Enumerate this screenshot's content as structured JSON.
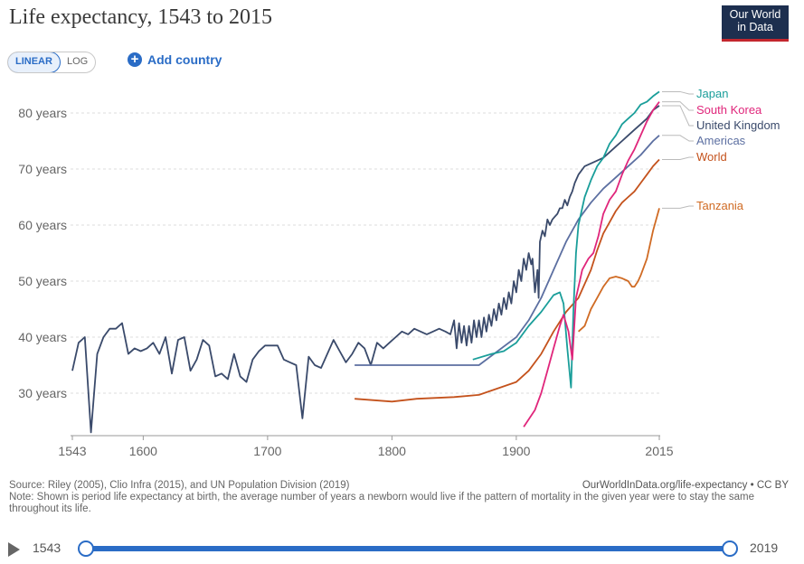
{
  "header": {
    "title": "Life expectancy, 1543 to 2015",
    "logo_line1": "Our World",
    "logo_line2": "in Data"
  },
  "controls": {
    "linear_label": "LINEAR",
    "log_label": "LOG",
    "add_country_label": "Add country"
  },
  "footer": {
    "source": "Source: Riley (2005), Clio Infra (2015), and UN Population Division (2019)",
    "note": "Note: Shown is period life expectancy at birth, the average number of years a newborn would live if the pattern of mortality in the given year were to stay the same throughout its life.",
    "url": "OurWorldInData.org/life-expectancy • CC BY"
  },
  "timeline": {
    "start_label": "1543",
    "end_label": "2019"
  },
  "colors": {
    "Japan": "#1a9e9a",
    "South Korea": "#e0267b",
    "United Kingdom": "#3a4a6b",
    "Americas": "#5c6fa1",
    "World": "#c4521c",
    "Tanzania": "#d06b24"
  },
  "chart_data": {
    "type": "line",
    "title": "Life expectancy, 1543 to 2015",
    "xlim": [
      1543,
      2015
    ],
    "ylim": [
      22,
      85
    ],
    "x_ticks": [
      1543,
      1600,
      1700,
      1800,
      1900,
      2015
    ],
    "y_ticks": [
      30,
      40,
      50,
      60,
      70,
      80
    ],
    "y_tick_labels": [
      "30 years",
      "40 years",
      "50 years",
      "60 years",
      "70 years",
      "80 years"
    ],
    "grid": "horizontal dashed",
    "legend": "right end labels",
    "series": [
      {
        "name": "United Kingdom",
        "points": [
          [
            1543,
            34
          ],
          [
            1548,
            39
          ],
          [
            1553,
            40
          ],
          [
            1558,
            23
          ],
          [
            1563,
            37
          ],
          [
            1568,
            40
          ],
          [
            1573,
            41.5
          ],
          [
            1578,
            41.5
          ],
          [
            1583,
            42.5
          ],
          [
            1588,
            37
          ],
          [
            1593,
            38
          ],
          [
            1598,
            37.5
          ],
          [
            1603,
            38
          ],
          [
            1608,
            39
          ],
          [
            1613,
            37
          ],
          [
            1618,
            40
          ],
          [
            1623,
            33.5
          ],
          [
            1628,
            39.5
          ],
          [
            1633,
            40
          ],
          [
            1638,
            34
          ],
          [
            1643,
            36
          ],
          [
            1648,
            39.5
          ],
          [
            1653,
            38.5
          ],
          [
            1658,
            33
          ],
          [
            1663,
            33.5
          ],
          [
            1668,
            32.5
          ],
          [
            1673,
            37
          ],
          [
            1678,
            33
          ],
          [
            1683,
            32
          ],
          [
            1688,
            36
          ],
          [
            1693,
            37.5
          ],
          [
            1698,
            38.5
          ],
          [
            1703,
            38.5
          ],
          [
            1708,
            38.5
          ],
          [
            1713,
            36
          ],
          [
            1718,
            35.5
          ],
          [
            1723,
            35
          ],
          [
            1728,
            25.5
          ],
          [
            1733,
            36.5
          ],
          [
            1738,
            35
          ],
          [
            1743,
            34.5
          ],
          [
            1748,
            37
          ],
          [
            1753,
            39.5
          ],
          [
            1758,
            37.5
          ],
          [
            1763,
            35.5
          ],
          [
            1768,
            37
          ],
          [
            1773,
            39
          ],
          [
            1778,
            38
          ],
          [
            1783,
            35
          ],
          [
            1788,
            39
          ],
          [
            1793,
            38
          ],
          [
            1798,
            39
          ],
          [
            1803,
            40
          ],
          [
            1808,
            41
          ],
          [
            1813,
            40.5
          ],
          [
            1818,
            41.5
          ],
          [
            1823,
            41
          ],
          [
            1828,
            40.5
          ],
          [
            1833,
            41
          ],
          [
            1838,
            41.5
          ],
          [
            1843,
            41
          ],
          [
            1847,
            40.5
          ],
          [
            1850,
            43
          ],
          [
            1852,
            38
          ],
          [
            1854,
            42.5
          ],
          [
            1856,
            39
          ],
          [
            1858,
            42
          ],
          [
            1860,
            38.5
          ],
          [
            1862,
            42
          ],
          [
            1864,
            39
          ],
          [
            1866,
            43
          ],
          [
            1868,
            40
          ],
          [
            1870,
            43
          ],
          [
            1872,
            40
          ],
          [
            1874,
            43.5
          ],
          [
            1876,
            41
          ],
          [
            1878,
            44
          ],
          [
            1880,
            42
          ],
          [
            1882,
            45
          ],
          [
            1884,
            43
          ],
          [
            1886,
            46
          ],
          [
            1888,
            44
          ],
          [
            1890,
            47
          ],
          [
            1892,
            45
          ],
          [
            1894,
            48
          ],
          [
            1896,
            46
          ],
          [
            1898,
            50
          ],
          [
            1900,
            48
          ],
          [
            1902,
            52
          ],
          [
            1904,
            50
          ],
          [
            1906,
            54
          ],
          [
            1908,
            52
          ],
          [
            1910,
            55
          ],
          [
            1912,
            53
          ],
          [
            1913,
            54
          ],
          [
            1915,
            48
          ],
          [
            1917,
            52
          ],
          [
            1918,
            47
          ],
          [
            1919,
            57
          ],
          [
            1921,
            59
          ],
          [
            1923,
            58
          ],
          [
            1925,
            61
          ],
          [
            1927,
            60
          ],
          [
            1929,
            61
          ],
          [
            1931,
            61.5
          ],
          [
            1933,
            62
          ],
          [
            1935,
            63
          ],
          [
            1937,
            63
          ],
          [
            1939,
            64.5
          ],
          [
            1941,
            63.5
          ],
          [
            1943,
            65
          ],
          [
            1945,
            66
          ],
          [
            1947,
            67.5
          ],
          [
            1950,
            69
          ],
          [
            1955,
            70.5
          ],
          [
            1960,
            71
          ],
          [
            1965,
            71.5
          ],
          [
            1970,
            72
          ],
          [
            1975,
            73
          ],
          [
            1980,
            74
          ],
          [
            1985,
            75
          ],
          [
            1990,
            76
          ],
          [
            1995,
            77
          ],
          [
            2000,
            78
          ],
          [
            2005,
            79
          ],
          [
            2010,
            80.5
          ],
          [
            2015,
            81.3
          ]
        ]
      },
      {
        "name": "Americas",
        "points": [
          [
            1770,
            35
          ],
          [
            1870,
            35
          ],
          [
            1900,
            40
          ],
          [
            1910,
            43
          ],
          [
            1920,
            47
          ],
          [
            1930,
            52
          ],
          [
            1940,
            57
          ],
          [
            1950,
            61
          ],
          [
            1960,
            64
          ],
          [
            1970,
            66.5
          ],
          [
            1980,
            68.5
          ],
          [
            1990,
            70.5
          ],
          [
            2000,
            72.5
          ],
          [
            2010,
            75
          ],
          [
            2015,
            76
          ]
        ]
      },
      {
        "name": "World",
        "points": [
          [
            1770,
            29
          ],
          [
            1800,
            28.5
          ],
          [
            1820,
            29
          ],
          [
            1850,
            29.3
          ],
          [
            1870,
            29.7
          ],
          [
            1900,
            32
          ],
          [
            1910,
            34
          ],
          [
            1920,
            37
          ],
          [
            1930,
            41
          ],
          [
            1940,
            44.5
          ],
          [
            1950,
            47
          ],
          [
            1955,
            49.5
          ],
          [
            1960,
            52
          ],
          [
            1965,
            55.5
          ],
          [
            1970,
            58.5
          ],
          [
            1975,
            60.5
          ],
          [
            1980,
            62.5
          ],
          [
            1985,
            64
          ],
          [
            1990,
            65
          ],
          [
            1995,
            66
          ],
          [
            2000,
            67.5
          ],
          [
            2005,
            69
          ],
          [
            2010,
            70.5
          ],
          [
            2015,
            71.7
          ]
        ]
      },
      {
        "name": "Japan",
        "points": [
          [
            1865,
            36
          ],
          [
            1880,
            37
          ],
          [
            1890,
            37.5
          ],
          [
            1900,
            39
          ],
          [
            1910,
            42
          ],
          [
            1920,
            44.5
          ],
          [
            1930,
            47.5
          ],
          [
            1935,
            48
          ],
          [
            1938,
            46
          ],
          [
            1941,
            38
          ],
          [
            1944,
            31
          ],
          [
            1946,
            45
          ],
          [
            1948,
            55
          ],
          [
            1950,
            60
          ],
          [
            1955,
            65
          ],
          [
            1960,
            68
          ],
          [
            1965,
            70.5
          ],
          [
            1970,
            72
          ],
          [
            1975,
            74.5
          ],
          [
            1980,
            76
          ],
          [
            1985,
            78
          ],
          [
            1990,
            79
          ],
          [
            1995,
            80
          ],
          [
            2000,
            81.5
          ],
          [
            2005,
            82
          ],
          [
            2010,
            83
          ],
          [
            2015,
            83.8
          ]
        ]
      },
      {
        "name": "South Korea",
        "points": [
          [
            1906,
            24
          ],
          [
            1915,
            27
          ],
          [
            1920,
            30
          ],
          [
            1925,
            34
          ],
          [
            1930,
            38
          ],
          [
            1935,
            42
          ],
          [
            1938,
            44
          ],
          [
            1942,
            41
          ],
          [
            1945,
            36
          ],
          [
            1948,
            47
          ],
          [
            1953,
            52
          ],
          [
            1958,
            54
          ],
          [
            1962,
            55
          ],
          [
            1966,
            58
          ],
          [
            1970,
            62
          ],
          [
            1975,
            64.5
          ],
          [
            1980,
            66
          ],
          [
            1985,
            69
          ],
          [
            1990,
            71.5
          ],
          [
            1995,
            73.5
          ],
          [
            2000,
            76
          ],
          [
            2005,
            78.5
          ],
          [
            2010,
            80.5
          ],
          [
            2015,
            82
          ]
        ]
      },
      {
        "name": "Tanzania",
        "points": [
          [
            1950,
            41
          ],
          [
            1955,
            42
          ],
          [
            1960,
            45
          ],
          [
            1965,
            47
          ],
          [
            1970,
            49
          ],
          [
            1975,
            50.5
          ],
          [
            1980,
            50.8
          ],
          [
            1985,
            50.5
          ],
          [
            1990,
            50
          ],
          [
            1993,
            49
          ],
          [
            1995,
            49
          ],
          [
            1998,
            50
          ],
          [
            2000,
            51
          ],
          [
            2005,
            54
          ],
          [
            2010,
            59
          ],
          [
            2015,
            63
          ]
        ]
      }
    ]
  }
}
